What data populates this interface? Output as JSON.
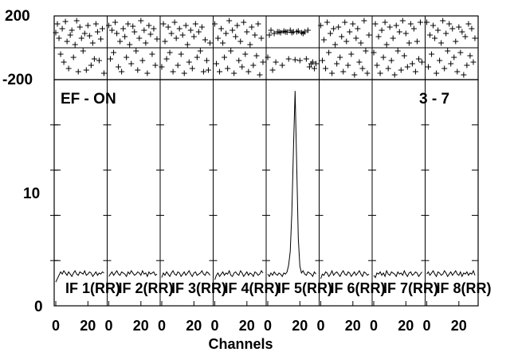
{
  "chart_data": {
    "type": "line",
    "annotations": {
      "left": "EF - ON",
      "right": "3 - 7"
    },
    "xlabel": "Channels",
    "xlim": [
      -1,
      32
    ],
    "x_ticks": [
      "0",
      "20"
    ],
    "phase_panel": {
      "ylim": [
        -200,
        200
      ],
      "y_ticks": [
        "200",
        "-200"
      ]
    },
    "amp_panel": {
      "ylim": [
        0,
        20
      ],
      "y_ticks": [
        "10",
        "0"
      ]
    },
    "panels": [
      {
        "label": "IF 1(RR)",
        "amplitude": [
          2.1,
          2.4,
          2.7,
          3.0,
          2.8,
          3.1,
          2.9,
          2.7,
          3.0,
          2.8,
          2.6,
          2.9,
          3.1,
          2.8,
          2.7,
          3.0,
          2.9,
          2.8,
          3.1,
          2.7,
          2.8,
          3.0,
          2.9,
          2.6,
          2.8,
          3.0,
          2.7,
          2.9,
          2.8,
          3.0,
          2.9
        ],
        "phase": [
          95,
          150,
          60,
          -40,
          120,
          -90,
          165,
          40,
          -130,
          80,
          110,
          -60,
          20,
          170,
          -150,
          130,
          60,
          -20,
          90,
          -140,
          140,
          75,
          -110,
          30,
          -70,
          150,
          100,
          -80,
          55,
          120,
          -160
        ]
      },
      {
        "label": "IF 2(RR)",
        "amplitude": [
          2.6,
          2.8,
          3.0,
          2.7,
          2.9,
          3.1,
          2.8,
          2.7,
          3.0,
          2.9,
          2.8,
          2.6,
          3.0,
          2.8,
          3.1,
          2.9,
          2.7,
          2.8,
          3.0,
          2.9,
          2.7,
          3.1,
          2.8,
          2.9,
          2.6,
          3.0,
          2.8,
          2.9,
          3.0,
          2.7,
          2.8
        ],
        "phase": [
          140,
          -70,
          110,
          -30,
          160,
          90,
          -120,
          40,
          -150,
          120,
          70,
          -60,
          150,
          20,
          -100,
          135,
          100,
          -20,
          -140,
          60,
          170,
          -80,
          110,
          30,
          -160,
          140,
          85,
          -40,
          120,
          -110,
          55
        ]
      },
      {
        "label": "IF 3(RR)",
        "amplitude": [
          2.5,
          2.9,
          2.7,
          3.0,
          2.8,
          2.6,
          2.9,
          3.1,
          2.8,
          2.7,
          3.0,
          2.9,
          2.6,
          2.8,
          3.0,
          2.7,
          2.9,
          3.1,
          2.8,
          2.6,
          2.9,
          3.0,
          2.7,
          2.8,
          2.9,
          3.1,
          2.8,
          2.7,
          3.0,
          2.9,
          2.7
        ],
        "phase": [
          -120,
          150,
          40,
          -70,
          130,
          -30,
          90,
          -150,
          160,
          60,
          -110,
          120,
          -40,
          80,
          -160,
          140,
          20,
          -90,
          110,
          -130,
          70,
          150,
          -60,
          100,
          -20,
          130,
          -150,
          50,
          -80,
          -140,
          30
        ]
      },
      {
        "label": "IF 4(RR)",
        "amplitude": [
          2.3,
          2.7,
          2.9,
          2.6,
          2.8,
          3.0,
          2.7,
          2.9,
          2.8,
          3.1,
          2.7,
          2.6,
          2.9,
          3.0,
          2.8,
          2.7,
          3.1,
          2.9,
          2.6,
          2.8,
          3.0,
          2.7,
          2.9,
          2.8,
          2.6,
          3.0,
          2.9,
          2.7,
          2.8,
          3.1,
          2.9
        ],
        "phase": [
          150,
          -100,
          60,
          -150,
          120,
          30,
          -60,
          90,
          -130,
          170,
          -20,
          110,
          -160,
          70,
          140,
          -80,
          40,
          -120,
          160,
          -40,
          100,
          -150,
          20,
          130,
          -110,
          80,
          -50,
          150,
          -170,
          60,
          -90
        ]
      },
      {
        "label": "IF 5(RR)",
        "amplitude": [
          2.8,
          2.6,
          2.9,
          2.7,
          3.0,
          2.8,
          2.7,
          2.9,
          2.8,
          2.6,
          2.9,
          2.8,
          3.0,
          3.6,
          4.8,
          8.2,
          14.0,
          19.0,
          12.5,
          6.0,
          3.5,
          2.9,
          3.1,
          2.8,
          2.7,
          3.0,
          2.9,
          2.8,
          2.6,
          3.0,
          2.8
        ],
        "phase": [
          -60,
          80,
          110,
          -140,
          90,
          -90,
          100,
          100,
          95,
          -110,
          105,
          100,
          98,
          -70,
          110,
          95,
          100,
          -75,
          100,
          105,
          -80,
          95,
          90,
          100,
          -70,
          110,
          -120,
          -100,
          -90,
          -130,
          -100
        ]
      },
      {
        "label": "IF 6(RR)",
        "amplitude": [
          2.4,
          2.8,
          2.7,
          3.0,
          2.9,
          2.6,
          2.8,
          3.1,
          2.7,
          2.9,
          3.0,
          2.8,
          2.6,
          2.9,
          3.1,
          2.8,
          2.7,
          3.0,
          2.9,
          2.6,
          2.8,
          3.0,
          2.7,
          2.9,
          3.1,
          2.8,
          2.6,
          3.0,
          2.9,
          2.7,
          2.8
        ],
        "phase": [
          140,
          -80,
          50,
          -130,
          160,
          -30,
          90,
          -160,
          120,
          20,
          -100,
          130,
          -60,
          70,
          -150,
          160,
          40,
          -110,
          100,
          -40,
          150,
          -170,
          60,
          120,
          -90,
          30,
          -130,
          170,
          -20,
          -160,
          80
        ]
      },
      {
        "label": "IF 7(RR)",
        "amplitude": [
          2.7,
          2.5,
          2.9,
          2.8,
          3.0,
          2.7,
          2.9,
          2.6,
          3.1,
          2.8,
          2.7,
          3.0,
          2.9,
          2.8,
          2.6,
          3.0,
          2.8,
          2.9,
          2.7,
          3.1,
          2.8,
          2.6,
          2.9,
          3.0,
          2.7,
          2.8,
          3.0,
          2.9,
          2.6,
          2.8,
          3.0
        ],
        "phase": [
          -30,
          150,
          -110,
          70,
          -160,
          110,
          -60,
          160,
          20,
          -130,
          130,
          -80,
          60,
          -170,
          140,
          -20,
          100,
          -140,
          170,
          -50,
          90,
          -120,
          30,
          150,
          -100,
          120,
          -150,
          40,
          -70,
          160,
          -90
        ]
      },
      {
        "label": "IF 8(RR)",
        "amplitude": [
          2.8,
          3.0,
          2.7,
          2.9,
          3.1,
          2.8,
          2.6,
          3.0,
          2.9,
          2.7,
          2.8,
          3.1,
          2.9,
          2.6,
          2.8,
          3.0,
          2.7,
          2.9,
          3.1,
          2.8,
          2.7,
          3.0,
          2.6,
          2.9,
          2.8,
          3.0,
          2.7,
          2.9,
          2.8,
          3.1,
          2.7
        ],
        "phase": [
          160,
          -120,
          80,
          -40,
          140,
          60,
          -160,
          110,
          -80,
          30,
          170,
          -130,
          90,
          -20,
          150,
          -100,
          120,
          -60,
          40,
          -150,
          130,
          -30,
          100,
          -170,
          70,
          -110,
          150,
          -50,
          120,
          -90,
          60
        ]
      }
    ]
  }
}
